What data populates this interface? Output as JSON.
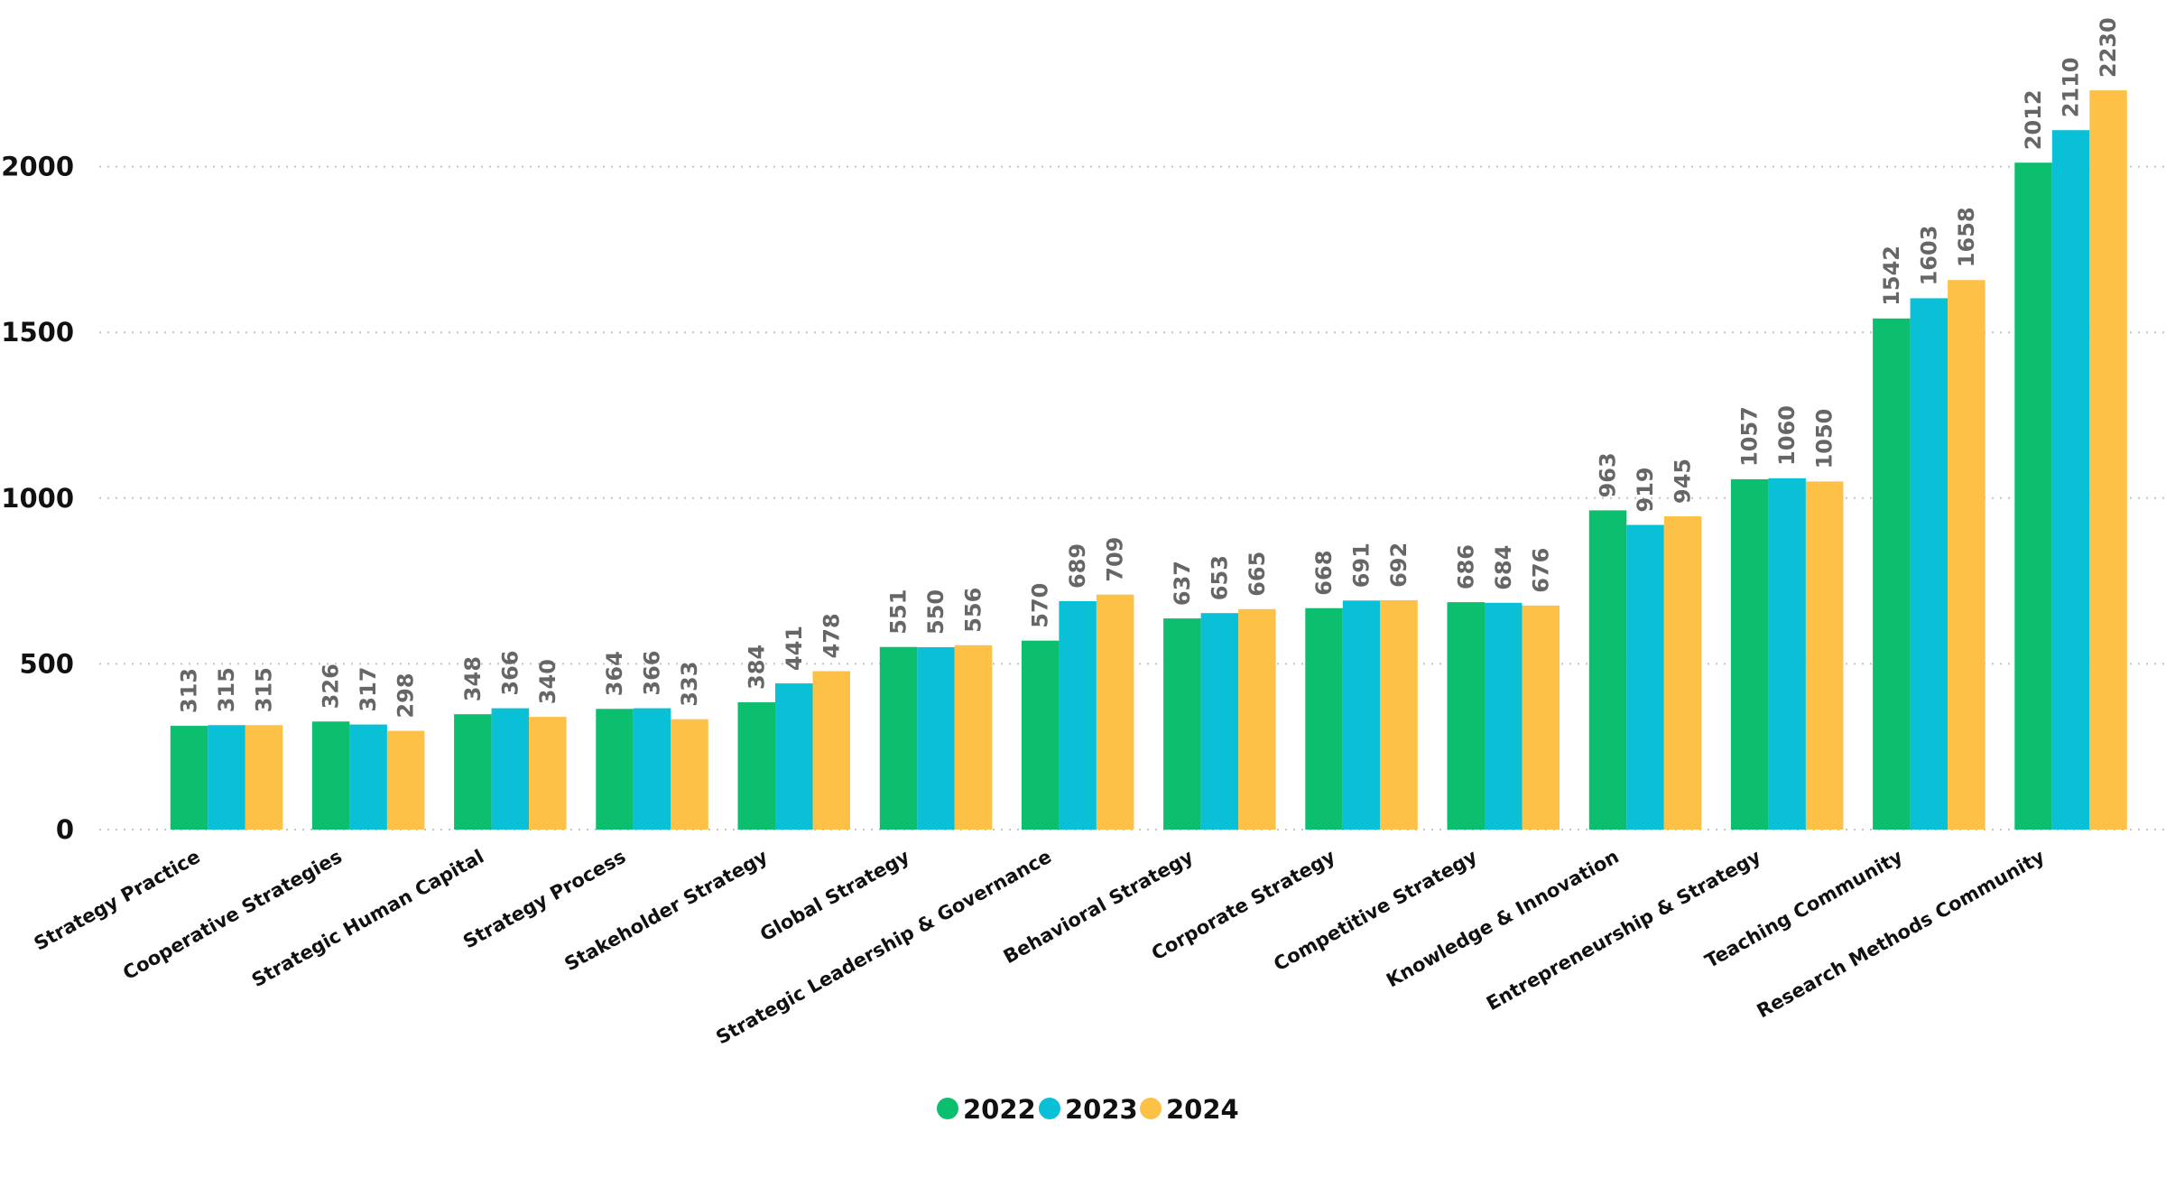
{
  "chart_data": {
    "type": "bar",
    "title": "",
    "xlabel": "",
    "ylabel": "",
    "ylim": [
      0,
      2300
    ],
    "yticks": [
      0,
      500,
      1000,
      1500,
      2000
    ],
    "grid": true,
    "legend_position": "bottom-center",
    "categories": [
      "Strategy Practice",
      "Cooperative Strategies",
      "Strategic Human Capital",
      "Strategy Process",
      "Stakeholder Strategy",
      "Global Strategy",
      "Strategic Leadership & Governance",
      "Behavioral Strategy",
      "Corporate Strategy",
      "Competitive Strategy",
      "Knowledge & Innovation",
      "Entrepreneurship & Strategy",
      "Teaching Community",
      "Research Methods Community"
    ],
    "series": [
      {
        "name": "2022",
        "color": "#0cbf6e",
        "values": [
          313,
          326,
          348,
          364,
          384,
          551,
          570,
          637,
          668,
          686,
          963,
          1057,
          1542,
          2012
        ]
      },
      {
        "name": "2023",
        "color": "#09c0d6",
        "values": [
          315,
          317,
          366,
          366,
          441,
          550,
          689,
          653,
          691,
          684,
          919,
          1060,
          1603,
          2110
        ]
      },
      {
        "name": "2024",
        "color": "#fcc146",
        "values": [
          315,
          298,
          340,
          333,
          478,
          556,
          709,
          665,
          692,
          676,
          945,
          1050,
          1658,
          2230
        ]
      }
    ]
  }
}
